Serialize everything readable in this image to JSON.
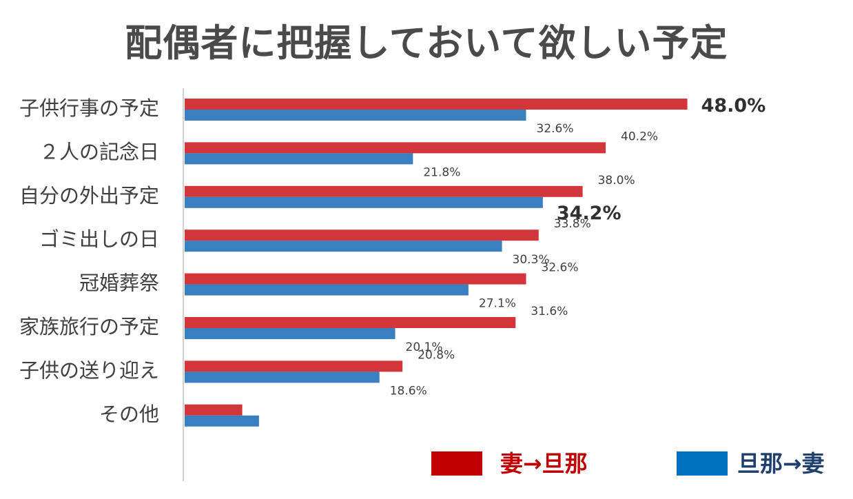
{
  "chart_data": {
    "type": "bar",
    "orientation": "horizontal",
    "title": "配偶者に把握しておいて欲しい予定",
    "categories": [
      "子供行事の予定",
      "２人の記念日",
      "自分の外出予定",
      "ゴミ出しの日",
      "冠婚葬祭",
      "家族旅行の予定",
      "子供の送り迎え",
      "その他"
    ],
    "series": [
      {
        "name": "妻→旦那",
        "color": "#d2353a",
        "values": [
          48.0,
          40.2,
          38.0,
          33.8,
          32.6,
          31.6,
          20.8,
          5.5
        ],
        "labels": [
          "48.0%",
          "40.2%",
          "38.0%",
          "33.8%",
          "32.6%",
          "31.6%",
          "20.8%",
          ""
        ],
        "highlight": [
          true,
          false,
          false,
          false,
          false,
          false,
          false,
          false
        ]
      },
      {
        "name": "旦那→妻",
        "color": "#3a7fbf",
        "values": [
          32.6,
          21.8,
          34.2,
          30.3,
          27.1,
          20.1,
          18.6,
          7.1
        ],
        "labels": [
          "32.6%",
          "21.8%",
          "34.2%",
          "30.3%",
          "27.1%",
          "20.1%",
          "18.6%",
          ""
        ],
        "highlight": [
          false,
          false,
          true,
          false,
          false,
          false,
          false,
          false
        ]
      }
    ],
    "legend": {
      "placement": "bottom-right",
      "items": [
        {
          "label": "妻→旦那",
          "swatch_color": "#c00000",
          "text_color": "#c00000"
        },
        {
          "label": "旦那→妻",
          "swatch_color": "#0070c0",
          "text_color": "#1f3f6e"
        }
      ]
    },
    "grid": false,
    "axis_line_color": "#d0d0d0"
  }
}
